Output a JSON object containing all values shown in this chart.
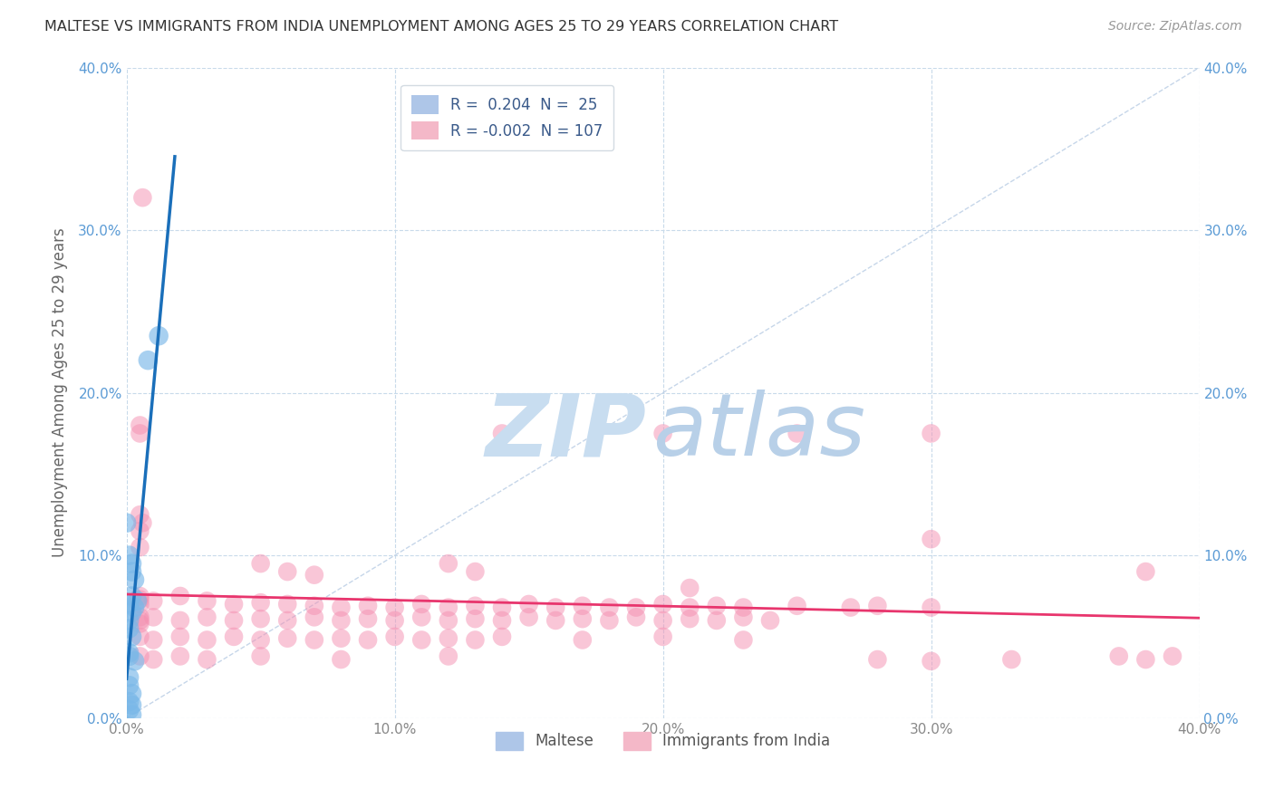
{
  "title": "MALTESE VS IMMIGRANTS FROM INDIA UNEMPLOYMENT AMONG AGES 25 TO 29 YEARS CORRELATION CHART",
  "source": "Source: ZipAtlas.com",
  "xlim": [
    0.0,
    0.4
  ],
  "ylim": [
    0.0,
    0.4
  ],
  "maltese_color": "#7ab8e8",
  "india_color": "#f48fb1",
  "maltese_trend_color": "#1a6fba",
  "india_trend_color": "#e8356d",
  "diagonal_color": "#b8cce4",
  "grid_color": "#c8daea",
  "watermark_zip_color": "#c8ddf0",
  "watermark_atlas_color": "#b8d0e8",
  "tick_label_color_y": "#5b9bd5",
  "tick_label_color_x": "#888888",
  "ylabel_color": "#666666",
  "maltese_points": [
    [
      0.0,
      0.12
    ],
    [
      0.008,
      0.22
    ],
    [
      0.012,
      0.235
    ],
    [
      0.002,
      0.09
    ],
    [
      0.003,
      0.085
    ],
    [
      0.002,
      0.075
    ],
    [
      0.001,
      0.07
    ],
    [
      0.003,
      0.068
    ],
    [
      0.004,
      0.072
    ],
    [
      0.002,
      0.065
    ],
    [
      0.001,
      0.1
    ],
    [
      0.002,
      0.095
    ],
    [
      0.001,
      0.06
    ],
    [
      0.001,
      0.055
    ],
    [
      0.002,
      0.05
    ],
    [
      0.001,
      0.04
    ],
    [
      0.001,
      0.038
    ],
    [
      0.003,
      0.035
    ],
    [
      0.001,
      0.025
    ],
    [
      0.001,
      0.02
    ],
    [
      0.002,
      0.015
    ],
    [
      0.001,
      0.01
    ],
    [
      0.002,
      0.008
    ],
    [
      0.001,
      0.005
    ],
    [
      0.002,
      0.002
    ]
  ],
  "india_points": [
    [
      0.006,
      0.32
    ],
    [
      0.005,
      0.18
    ],
    [
      0.005,
      0.175
    ],
    [
      0.14,
      0.175
    ],
    [
      0.2,
      0.175
    ],
    [
      0.25,
      0.175
    ],
    [
      0.3,
      0.175
    ],
    [
      0.005,
      0.125
    ],
    [
      0.006,
      0.12
    ],
    [
      0.005,
      0.115
    ],
    [
      0.005,
      0.105
    ],
    [
      0.3,
      0.11
    ],
    [
      0.12,
      0.095
    ],
    [
      0.13,
      0.09
    ],
    [
      0.05,
      0.095
    ],
    [
      0.06,
      0.09
    ],
    [
      0.07,
      0.088
    ],
    [
      0.38,
      0.09
    ],
    [
      0.21,
      0.08
    ],
    [
      0.005,
      0.075
    ],
    [
      0.005,
      0.073
    ],
    [
      0.005,
      0.07
    ],
    [
      0.01,
      0.072
    ],
    [
      0.02,
      0.075
    ],
    [
      0.03,
      0.072
    ],
    [
      0.04,
      0.07
    ],
    [
      0.05,
      0.071
    ],
    [
      0.06,
      0.07
    ],
    [
      0.07,
      0.069
    ],
    [
      0.08,
      0.068
    ],
    [
      0.09,
      0.069
    ],
    [
      0.1,
      0.068
    ],
    [
      0.11,
      0.07
    ],
    [
      0.12,
      0.068
    ],
    [
      0.13,
      0.069
    ],
    [
      0.14,
      0.068
    ],
    [
      0.15,
      0.07
    ],
    [
      0.16,
      0.068
    ],
    [
      0.17,
      0.069
    ],
    [
      0.18,
      0.068
    ],
    [
      0.19,
      0.068
    ],
    [
      0.2,
      0.07
    ],
    [
      0.21,
      0.068
    ],
    [
      0.22,
      0.069
    ],
    [
      0.23,
      0.068
    ],
    [
      0.25,
      0.069
    ],
    [
      0.27,
      0.068
    ],
    [
      0.28,
      0.069
    ],
    [
      0.3,
      0.068
    ],
    [
      0.005,
      0.062
    ],
    [
      0.005,
      0.06
    ],
    [
      0.005,
      0.058
    ],
    [
      0.01,
      0.062
    ],
    [
      0.02,
      0.06
    ],
    [
      0.03,
      0.062
    ],
    [
      0.04,
      0.06
    ],
    [
      0.05,
      0.061
    ],
    [
      0.06,
      0.06
    ],
    [
      0.07,
      0.062
    ],
    [
      0.08,
      0.06
    ],
    [
      0.09,
      0.061
    ],
    [
      0.1,
      0.06
    ],
    [
      0.11,
      0.062
    ],
    [
      0.12,
      0.06
    ],
    [
      0.13,
      0.061
    ],
    [
      0.14,
      0.06
    ],
    [
      0.15,
      0.062
    ],
    [
      0.16,
      0.06
    ],
    [
      0.17,
      0.061
    ],
    [
      0.18,
      0.06
    ],
    [
      0.19,
      0.062
    ],
    [
      0.2,
      0.06
    ],
    [
      0.21,
      0.061
    ],
    [
      0.22,
      0.06
    ],
    [
      0.23,
      0.062
    ],
    [
      0.24,
      0.06
    ],
    [
      0.005,
      0.05
    ],
    [
      0.01,
      0.048
    ],
    [
      0.02,
      0.05
    ],
    [
      0.03,
      0.048
    ],
    [
      0.04,
      0.05
    ],
    [
      0.05,
      0.048
    ],
    [
      0.06,
      0.049
    ],
    [
      0.07,
      0.048
    ],
    [
      0.08,
      0.049
    ],
    [
      0.09,
      0.048
    ],
    [
      0.1,
      0.05
    ],
    [
      0.11,
      0.048
    ],
    [
      0.12,
      0.049
    ],
    [
      0.13,
      0.048
    ],
    [
      0.14,
      0.05
    ],
    [
      0.17,
      0.048
    ],
    [
      0.2,
      0.05
    ],
    [
      0.23,
      0.048
    ],
    [
      0.005,
      0.038
    ],
    [
      0.01,
      0.036
    ],
    [
      0.02,
      0.038
    ],
    [
      0.03,
      0.036
    ],
    [
      0.05,
      0.038
    ],
    [
      0.08,
      0.036
    ],
    [
      0.12,
      0.038
    ],
    [
      0.28,
      0.036
    ],
    [
      0.3,
      0.035
    ],
    [
      0.33,
      0.036
    ],
    [
      0.37,
      0.038
    ],
    [
      0.38,
      0.036
    ],
    [
      0.39,
      0.038
    ]
  ]
}
